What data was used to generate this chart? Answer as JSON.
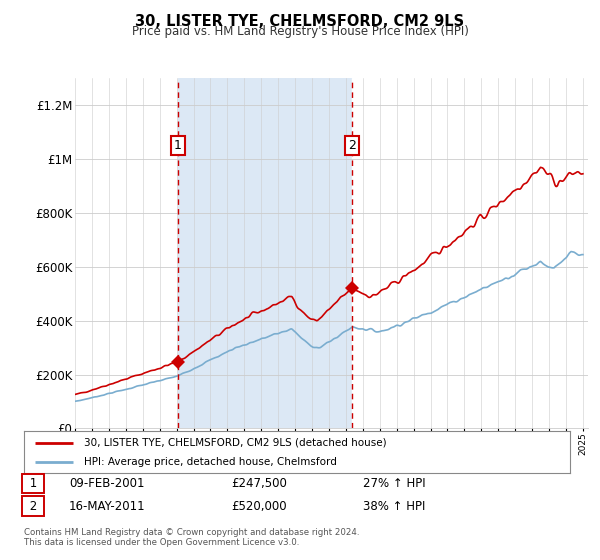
{
  "title": "30, LISTER TYE, CHELMSFORD, CM2 9LS",
  "subtitle": "Price paid vs. HM Land Registry's House Price Index (HPI)",
  "ylim": [
    0,
    1300000
  ],
  "yticks": [
    0,
    200000,
    400000,
    600000,
    800000,
    1000000,
    1200000
  ],
  "ytick_labels": [
    "£0",
    "£200K",
    "£400K",
    "£600K",
    "£800K",
    "£1M",
    "£1.2M"
  ],
  "x_start_year": 1995,
  "x_end_year": 2025,
  "sale1_date": 2001.09,
  "sale1_price": 247500,
  "sale1_label": "1",
  "sale1_text": "09-FEB-2001",
  "sale1_amount": "£247,500",
  "sale1_pct": "27% ↑ HPI",
  "sale2_date": 2011.37,
  "sale2_price": 520000,
  "sale2_label": "2",
  "sale2_text": "16-MAY-2011",
  "sale2_amount": "£520,000",
  "sale2_pct": "38% ↑ HPI",
  "house_color": "#cc0000",
  "hpi_color": "#7aadcf",
  "shaded_color": "#ddeeff",
  "legend1": "30, LISTER TYE, CHELMSFORD, CM2 9LS (detached house)",
  "legend2": "HPI: Average price, detached house, Chelmsford",
  "footer": "Contains HM Land Registry data © Crown copyright and database right 2024.\nThis data is licensed under the Open Government Licence v3.0.",
  "bg_color": "#ffffff",
  "grid_color": "#cccccc"
}
